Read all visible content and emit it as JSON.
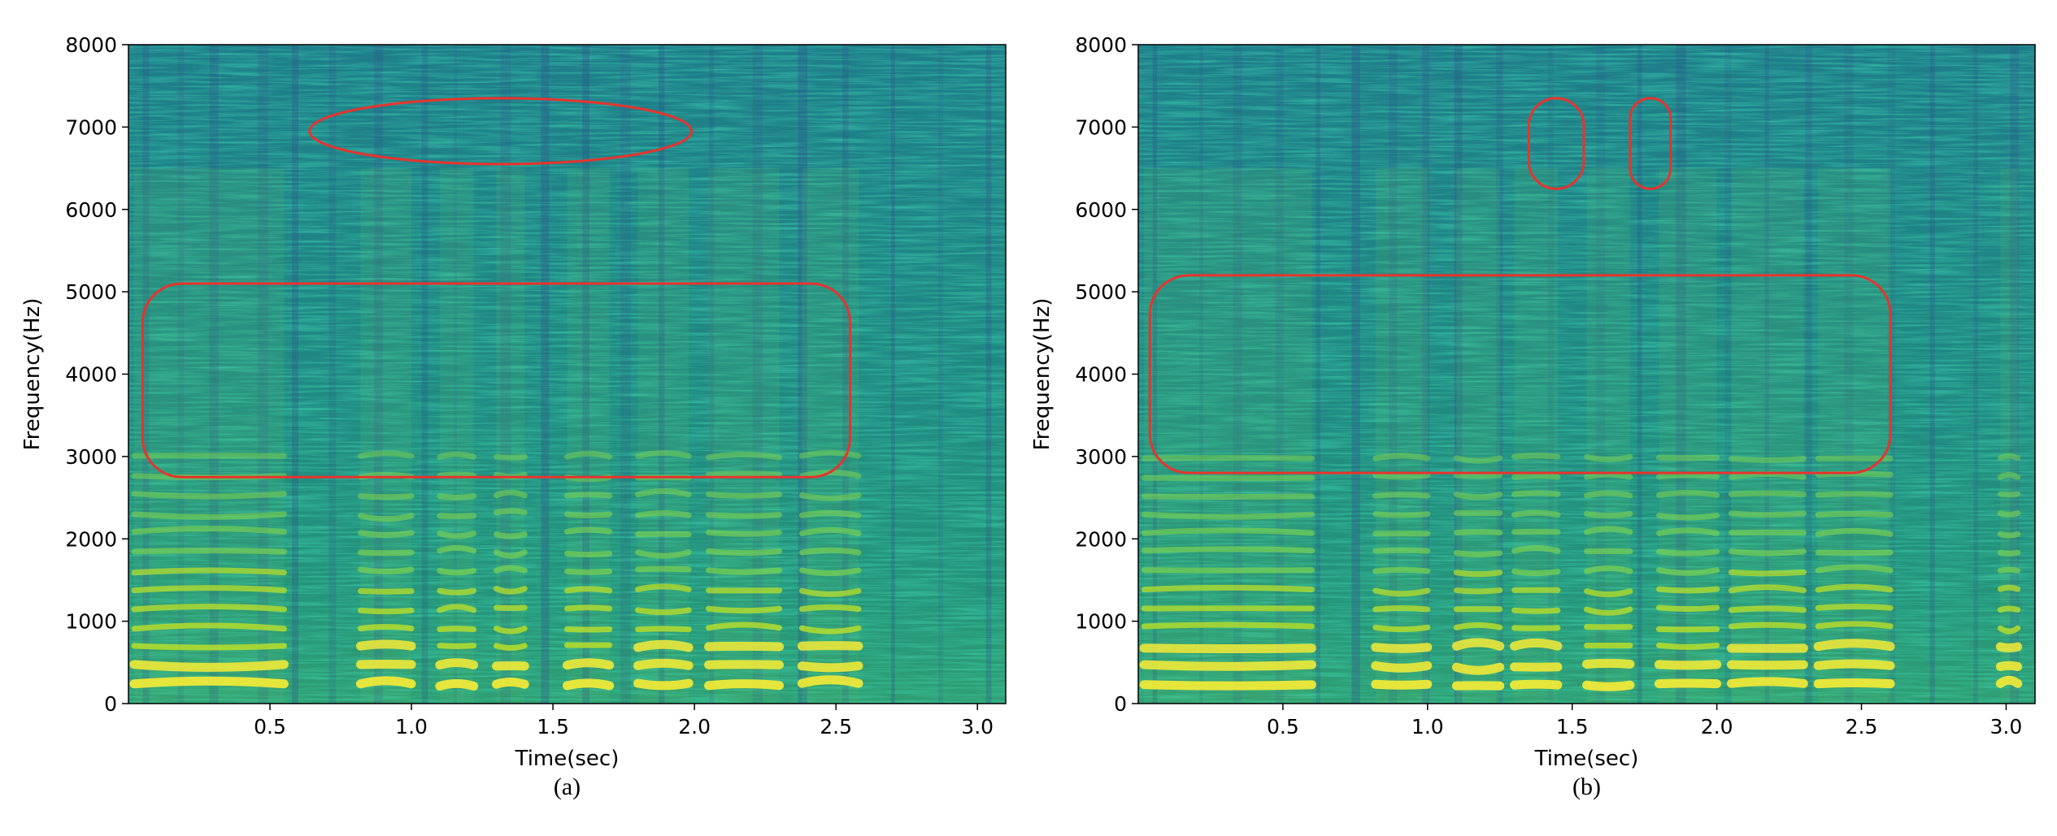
{
  "chart_data": [
    {
      "type": "heatmap",
      "title": "",
      "caption": "(a)",
      "xlabel": "Time(sec)",
      "ylabel": "Frequency(Hz)",
      "xlim": [
        0.0,
        3.1
      ],
      "ylim": [
        0,
        8000
      ],
      "x_ticks": [
        0.5,
        1.0,
        1.5,
        2.0,
        2.5,
        3.0
      ],
      "x_tick_labels": [
        "0.5",
        "1.0",
        "1.5",
        "2.0",
        "2.5",
        "3.0"
      ],
      "y_ticks": [
        0,
        1000,
        2000,
        3000,
        4000,
        5000,
        6000,
        7000,
        8000
      ],
      "y_tick_labels": [
        "0",
        "1000",
        "2000",
        "3000",
        "4000",
        "5000",
        "6000",
        "7000",
        "8000"
      ],
      "colormap": "viridis",
      "grid": false,
      "voiced_segments": [
        [
          0.02,
          0.55
        ],
        [
          0.82,
          1.0
        ],
        [
          1.1,
          1.22
        ],
        [
          1.3,
          1.4
        ],
        [
          1.55,
          1.7
        ],
        [
          1.8,
          1.98
        ],
        [
          2.05,
          2.3
        ],
        [
          2.38,
          2.58
        ]
      ],
      "annotations": [
        {
          "shape": "ellipse",
          "color": "#e8332d",
          "x_range": [
            0.64,
            1.99
          ],
          "y_range": [
            6550,
            7350
          ]
        },
        {
          "shape": "rounded-rect",
          "color": "#e8332d",
          "x_range": [
            0.05,
            2.55
          ],
          "y_range": [
            2750,
            5100
          ]
        }
      ]
    },
    {
      "type": "heatmap",
      "title": "",
      "caption": "(b)",
      "xlabel": "Time(sec)",
      "ylabel": "Frequency(Hz)",
      "xlim": [
        0.0,
        3.1
      ],
      "ylim": [
        0,
        8000
      ],
      "x_ticks": [
        0.5,
        1.0,
        1.5,
        2.0,
        2.5,
        3.0
      ],
      "x_tick_labels": [
        "0.5",
        "1.0",
        "1.5",
        "2.0",
        "2.5",
        "3.0"
      ],
      "y_ticks": [
        0,
        1000,
        2000,
        3000,
        4000,
        5000,
        6000,
        7000,
        8000
      ],
      "y_tick_labels": [
        "0",
        "1000",
        "2000",
        "3000",
        "4000",
        "5000",
        "6000",
        "7000",
        "8000"
      ],
      "colormap": "viridis",
      "grid": false,
      "voiced_segments": [
        [
          0.02,
          0.6
        ],
        [
          0.82,
          1.0
        ],
        [
          1.1,
          1.25
        ],
        [
          1.3,
          1.45
        ],
        [
          1.55,
          1.7
        ],
        [
          1.8,
          2.0
        ],
        [
          2.05,
          2.3
        ],
        [
          2.35,
          2.6
        ],
        [
          2.98,
          3.04
        ]
      ],
      "annotations": [
        {
          "shape": "rounded-rect",
          "color": "#e8332d",
          "x_range": [
            1.35,
            1.54
          ],
          "y_range": [
            6250,
            7350
          ]
        },
        {
          "shape": "rounded-rect",
          "color": "#e8332d",
          "x_range": [
            1.7,
            1.84
          ],
          "y_range": [
            6250,
            7350
          ]
        },
        {
          "shape": "rounded-rect",
          "color": "#e8332d",
          "x_range": [
            0.04,
            2.6
          ],
          "y_range": [
            2800,
            5200
          ]
        }
      ]
    }
  ]
}
